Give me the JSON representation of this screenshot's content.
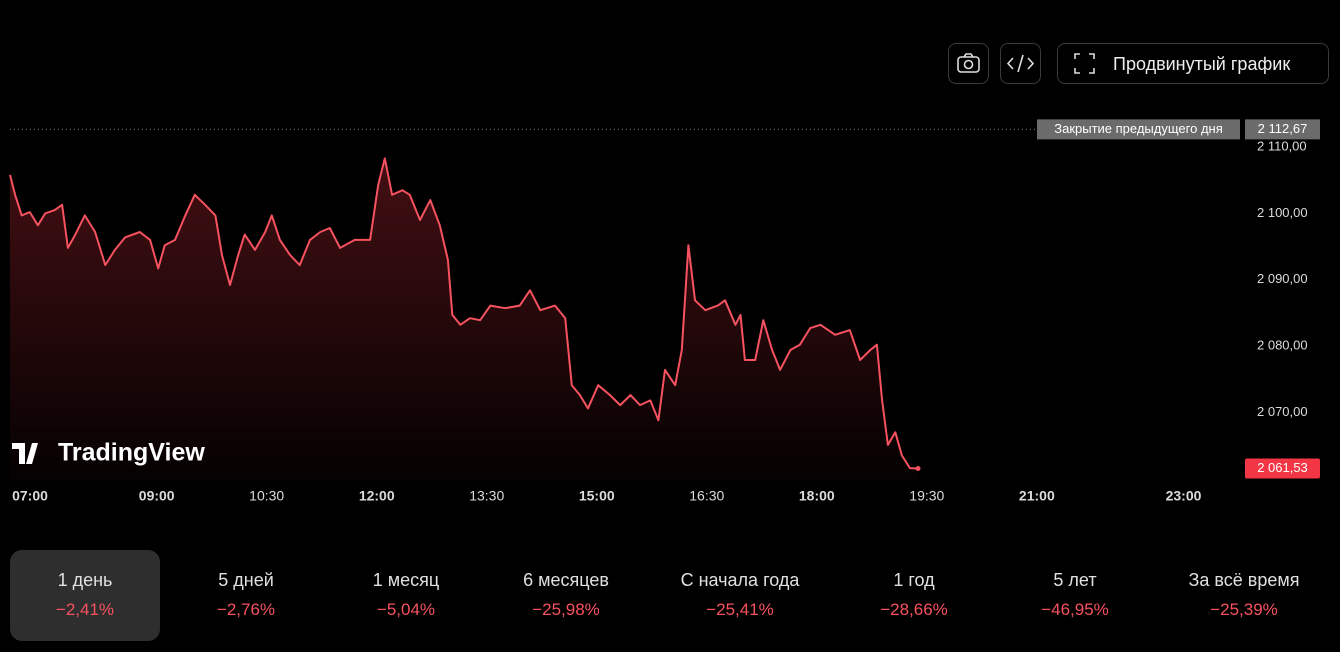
{
  "chart_data": {
    "type": "area",
    "x": [
      7.0,
      7.07,
      7.16,
      7.27,
      7.38,
      7.48,
      7.61,
      7.71,
      7.79,
      7.89,
      8.02,
      8.16,
      8.3,
      8.43,
      8.57,
      8.77,
      8.91,
      9.02,
      9.11,
      9.25,
      9.39,
      9.52,
      9.66,
      9.8,
      9.89,
      10.0,
      10.11,
      10.2,
      10.34,
      10.48,
      10.57,
      10.68,
      10.82,
      10.95,
      11.09,
      11.23,
      11.36,
      11.5,
      11.7,
      11.91,
      12.02,
      12.11,
      12.21,
      12.35,
      12.45,
      12.59,
      12.73,
      12.86,
      12.97,
      13.03,
      13.14,
      13.27,
      13.41,
      13.55,
      13.75,
      13.95,
      14.09,
      14.23,
      14.43,
      14.57,
      14.66,
      14.77,
      14.88,
      15.02,
      15.18,
      15.32,
      15.46,
      15.59,
      15.73,
      15.84,
      15.93,
      16.07,
      16.16,
      16.25,
      16.34,
      16.48,
      16.65,
      16.75,
      16.89,
      16.96,
      17.02,
      17.16,
      17.27,
      17.39,
      17.5,
      17.64,
      17.77,
      17.91,
      18.05,
      18.25,
      18.45,
      18.59,
      18.73,
      18.82,
      18.89,
      18.97,
      19.07,
      19.16,
      19.27,
      19.38
    ],
    "series": [
      {
        "color": "#f7525f",
        "values": [
          2105.8,
          2102.8,
          2099.7,
          2100.2,
          2098.2,
          2100,
          2100.5,
          2101.3,
          2094.8,
          2096.8,
          2099.7,
          2097.2,
          2092.2,
          2094.5,
          2096.4,
          2097.2,
          2096,
          2091.7,
          2095.2,
          2096,
          2099.7,
          2102.8,
          2101.3,
          2099.7,
          2093.7,
          2089.2,
          2093.7,
          2096.8,
          2094.5,
          2097.2,
          2099.7,
          2096,
          2093.7,
          2092.2,
          2096,
          2097.2,
          2097.8,
          2094.8,
          2096,
          2096,
          2104.3,
          2108.3,
          2102.8,
          2103.5,
          2102.8,
          2099,
          2102,
          2098.2,
          2093,
          2084.7,
          2083.2,
          2084.2,
          2083.9,
          2086.1,
          2085.7,
          2086.1,
          2088.4,
          2085.4,
          2086.1,
          2084.2,
          2074.1,
          2072.6,
          2070.6,
          2074.1,
          2072.6,
          2071.1,
          2072.6,
          2071.1,
          2071.8,
          2068.8,
          2076.4,
          2074.1,
          2079.4,
          2095.2,
          2086.9,
          2085.4,
          2086.1,
          2086.9,
          2083.2,
          2084.7,
          2077.9,
          2077.9,
          2083.9,
          2079.4,
          2076.4,
          2079.4,
          2080.2,
          2082.7,
          2083.2,
          2081.7,
          2082.4,
          2077.9,
          2079.4,
          2080.2,
          2071.8,
          2065.1,
          2067,
          2063.5,
          2061.6,
          2061.53
        ]
      }
    ],
    "xlim": [
      7,
      23.77
    ],
    "ylim": [
      2059.8,
      2117.1
    ],
    "xticks": [
      {
        "value": 7,
        "label": "07:00"
      },
      {
        "value": 9,
        "label": "09:00"
      },
      {
        "value": 10.5,
        "label": "10:30"
      },
      {
        "value": 12,
        "label": "12:00"
      },
      {
        "value": 13.5,
        "label": "13:30"
      },
      {
        "value": 15,
        "label": "15:00"
      },
      {
        "value": 16.5,
        "label": "16:30"
      },
      {
        "value": 18,
        "label": "18:00"
      },
      {
        "value": 19.5,
        "label": "19:30"
      },
      {
        "value": 21,
        "label": "21:00"
      },
      {
        "value": 23,
        "label": "23:00"
      }
    ],
    "yticks": [
      {
        "value": 2070,
        "label": "2 070,00"
      },
      {
        "value": 2080,
        "label": "2 080,00"
      },
      {
        "value": 2090,
        "label": "2 090,00"
      },
      {
        "value": 2100,
        "label": "2 100,00"
      },
      {
        "value": 2110,
        "label": "2 110,00"
      }
    ],
    "previous_close": {
      "name": "Закрытие предыдущего дня",
      "value": 2112.67,
      "label": "2 112,67"
    },
    "last_price": {
      "value": 2061.53,
      "label": "2 061,53"
    }
  },
  "logo": "TradingView",
  "toolbar": {
    "advanced_button": "Продвинутый график"
  },
  "periods": [
    {
      "label": "1 день",
      "change": "−2,41%"
    },
    {
      "label": "5 дней",
      "change": "−2,76%"
    },
    {
      "label": "1 месяц",
      "change": "−5,04%"
    },
    {
      "label": "6 месяцев",
      "change": "−25,98%"
    },
    {
      "label": "С начала года",
      "change": "−25,41%"
    },
    {
      "label": "1 год",
      "change": "−28,66%"
    },
    {
      "label": "5 лет",
      "change": "−46,95%"
    },
    {
      "label": "За всё время",
      "change": "−25,39%"
    }
  ],
  "active_period": 0
}
